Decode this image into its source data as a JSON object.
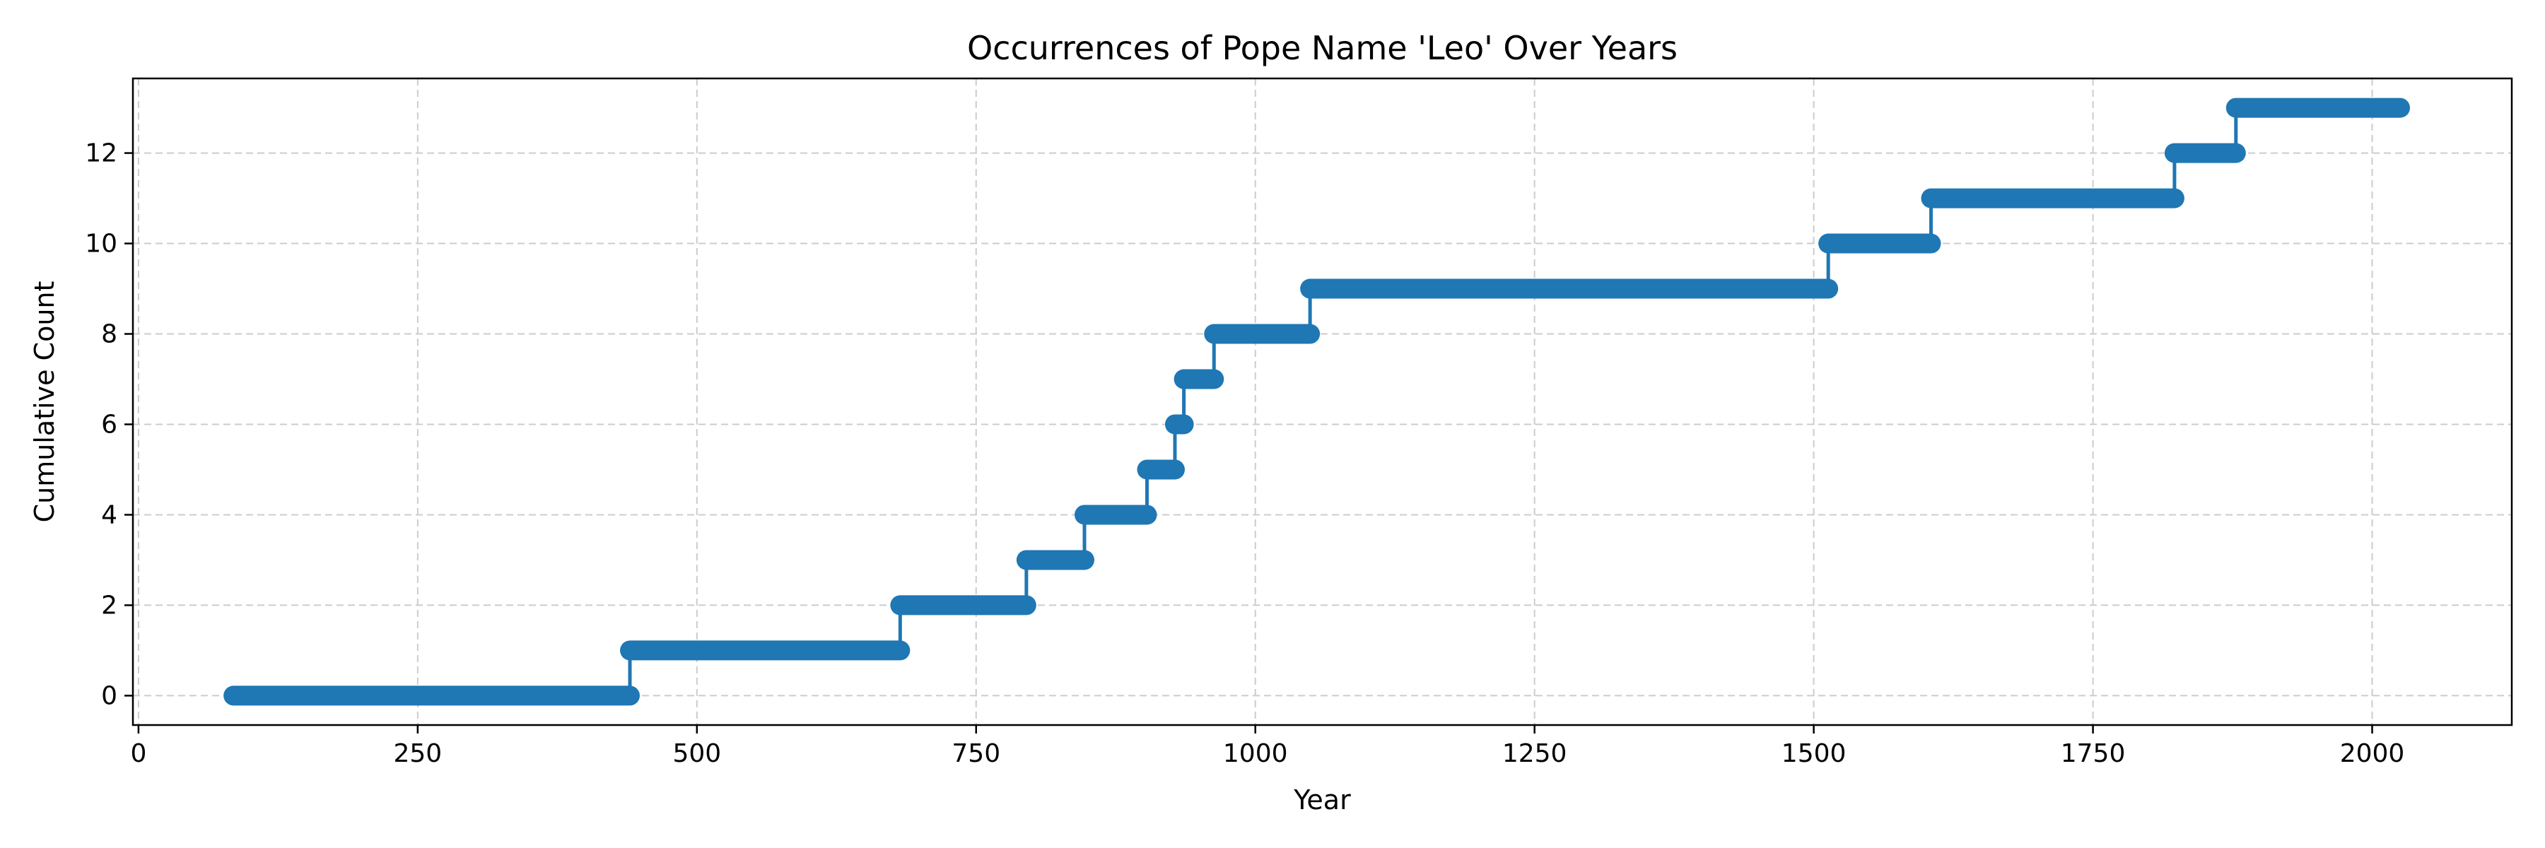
{
  "chart_data": {
    "type": "line",
    "subtype": "step",
    "title": "Occurrences of Pope Name 'Leo' Over Years",
    "xlabel": "Year",
    "ylabel": "Cumulative Count",
    "xlim": [
      -5,
      2125
    ],
    "ylim": [
      -0.65,
      13.65
    ],
    "xticks": [
      0,
      250,
      500,
      750,
      1000,
      1250,
      1500,
      1750,
      2000
    ],
    "yticks": [
      0,
      2,
      4,
      6,
      8,
      10,
      12
    ],
    "grid": true,
    "grid_style": "dashed",
    "line_color": "#1f77b4",
    "series": [
      {
        "steps": [
          {
            "x_start": 85,
            "x_end": 440,
            "y": 0
          },
          {
            "x_start": 440,
            "x_end": 682,
            "y": 1
          },
          {
            "x_start": 682,
            "x_end": 795,
            "y": 2
          },
          {
            "x_start": 795,
            "x_end": 847,
            "y": 3
          },
          {
            "x_start": 847,
            "x_end": 903,
            "y": 4
          },
          {
            "x_start": 903,
            "x_end": 928,
            "y": 5
          },
          {
            "x_start": 928,
            "x_end": 936,
            "y": 6
          },
          {
            "x_start": 936,
            "x_end": 963,
            "y": 7
          },
          {
            "x_start": 963,
            "x_end": 1049,
            "y": 8
          },
          {
            "x_start": 1049,
            "x_end": 1513,
            "y": 9
          },
          {
            "x_start": 1513,
            "x_end": 1605,
            "y": 10
          },
          {
            "x_start": 1605,
            "x_end": 1823,
            "y": 11
          },
          {
            "x_start": 1823,
            "x_end": 1878,
            "y": 12
          },
          {
            "x_start": 1878,
            "x_end": 2025,
            "y": 13
          }
        ]
      }
    ]
  }
}
